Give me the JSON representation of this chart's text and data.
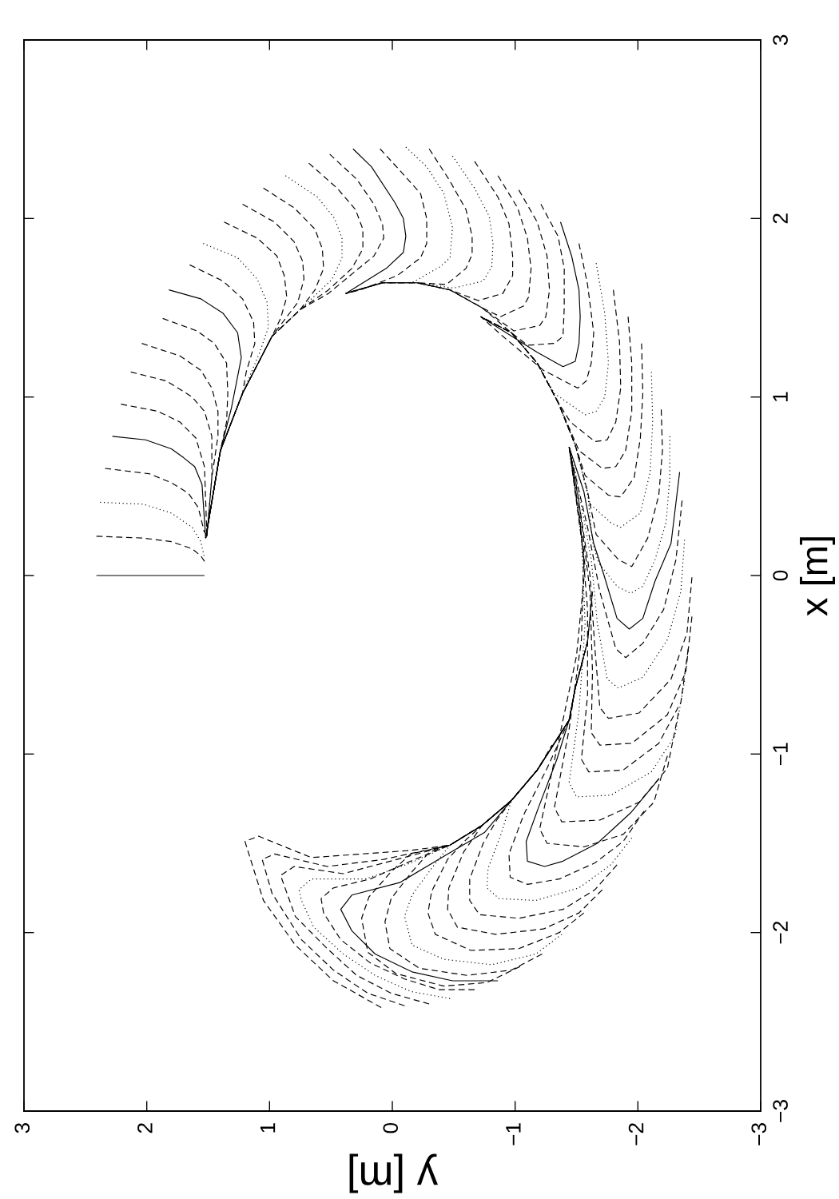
{
  "chart_data": {
    "type": "line",
    "xlabel": "y [m]",
    "ylabel": "x [m]",
    "xlim": [
      3,
      -3
    ],
    "ylim": [
      -3,
      3
    ],
    "xticks": [
      3,
      2,
      1,
      0,
      {
        "value": -1,
        "label": "−1"
      },
      {
        "value": -2,
        "label": "−2"
      },
      {
        "value": -3,
        "label": "−3"
      }
    ],
    "yticks": [
      {
        "value": -3,
        "label": "−3"
      },
      {
        "value": -2,
        "label": "−2"
      },
      {
        "value": -1,
        "label": "−1"
      },
      0,
      1,
      2,
      3
    ],
    "series": [
      {
        "x": [
          2.41,
          1.53
        ],
        "values": [
          0.0,
          0.0
        ],
        "color": "#000000",
        "line_style": "solid"
      },
      {
        "x": [
          2.41,
          2.03,
          1.8,
          1.63,
          1.56,
          1.52
        ],
        "values": [
          0.22,
          0.21,
          0.19,
          0.15,
          0.11,
          0.07
        ],
        "color": "#000000",
        "line_style": "dashed"
      },
      {
        "x": [
          2.38,
          2.03,
          1.8,
          1.63,
          1.56,
          1.53
        ],
        "values": [
          0.41,
          0.4,
          0.35,
          0.27,
          0.19,
          0.1
        ],
        "color": "#000000",
        "line_style": "dotted"
      },
      {
        "x": [
          2.34,
          1.98,
          1.8,
          1.66,
          1.58,
          1.53
        ],
        "values": [
          0.6,
          0.57,
          0.52,
          0.46,
          0.38,
          0.24
        ],
        "color": "#000000",
        "line_style": "dashed"
      },
      {
        "x": [
          2.28,
          2.01,
          1.8,
          1.7,
          1.61,
          1.55,
          1.52
        ],
        "values": [
          0.78,
          0.76,
          0.71,
          0.66,
          0.61,
          0.51,
          0.21
        ],
        "color": "#000000",
        "line_style": "solid"
      },
      {
        "x": [
          2.21,
          1.91,
          1.73,
          1.6,
          1.53,
          1.51
        ],
        "values": [
          0.96,
          0.92,
          0.86,
          0.77,
          0.61,
          0.22
        ],
        "color": "#000000",
        "line_style": "dashed"
      },
      {
        "x": [
          2.13,
          1.84,
          1.63,
          1.53,
          1.47,
          1.47,
          1.51
        ],
        "values": [
          1.14,
          1.09,
          1.0,
          0.92,
          0.78,
          0.55,
          0.22
        ],
        "color": "#000000",
        "line_style": "dashed"
      },
      {
        "x": [
          2.04,
          1.73,
          1.56,
          1.47,
          1.42,
          1.42,
          1.47,
          1.51
        ],
        "values": [
          1.3,
          1.23,
          1.15,
          1.05,
          0.92,
          0.78,
          0.55,
          0.22
        ],
        "color": "#000000",
        "line_style": "dashed"
      },
      {
        "x": [
          1.87,
          1.59,
          1.45,
          1.35,
          1.34,
          1.35,
          1.4,
          1.52
        ],
        "values": [
          1.44,
          1.37,
          1.3,
          1.19,
          1.02,
          0.86,
          0.7,
          0.21
        ],
        "color": "#000000",
        "line_style": "dashed"
      },
      {
        "x": [
          1.82,
          1.56,
          1.38,
          1.26,
          1.23,
          1.31,
          1.4,
          1.51
        ],
        "values": [
          1.6,
          1.55,
          1.47,
          1.36,
          1.22,
          0.94,
          0.7,
          0.25
        ],
        "color": "#000000",
        "line_style": "solid"
      },
      {
        "x": [
          1.65,
          1.38,
          1.22,
          1.13,
          1.12,
          1.19,
          1.22,
          1.4,
          1.52
        ],
        "values": [
          1.74,
          1.65,
          1.55,
          1.42,
          1.3,
          1.14,
          1.02,
          0.7,
          0.21
        ],
        "color": "#000000",
        "line_style": "dashed"
      },
      {
        "x": [
          1.54,
          1.26,
          1.1,
          1.02,
          1.01,
          1.08,
          1.22,
          1.4,
          1.52
        ],
        "values": [
          1.86,
          1.78,
          1.66,
          1.53,
          1.39,
          1.25,
          1.02,
          0.7,
          0.21
        ],
        "color": "#000000",
        "line_style": "dotted"
      },
      {
        "x": [
          1.37,
          1.1,
          0.94,
          0.88,
          0.86,
          0.91,
          0.98,
          1.22,
          1.4,
          1.52
        ],
        "values": [
          1.98,
          1.89,
          1.79,
          1.68,
          1.56,
          1.44,
          1.34,
          1.02,
          0.7,
          0.21
        ],
        "color": "#000000",
        "line_style": "dashed"
      },
      {
        "x": [
          1.22,
          0.96,
          0.8,
          0.73,
          0.72,
          0.77,
          0.98,
          1.22,
          1.4,
          1.52
        ],
        "values": [
          2.08,
          1.98,
          1.87,
          1.76,
          1.66,
          1.53,
          1.34,
          1.02,
          0.7,
          0.21
        ],
        "color": "#000000",
        "line_style": "dashed"
      },
      {
        "x": [
          1.05,
          0.8,
          0.63,
          0.57,
          0.56,
          0.63,
          0.75,
          0.98,
          1.22,
          1.4,
          1.52
        ],
        "values": [
          2.17,
          2.06,
          1.94,
          1.83,
          1.72,
          1.6,
          1.49,
          1.34,
          1.02,
          0.7,
          0.21
        ],
        "color": "#000000",
        "line_style": "dashed"
      },
      {
        "x": [
          0.87,
          0.61,
          0.47,
          0.41,
          0.41,
          0.49,
          0.75,
          0.98,
          1.22,
          1.4,
          1.52
        ],
        "values": [
          2.24,
          2.12,
          2.0,
          1.89,
          1.78,
          1.66,
          1.49,
          1.34,
          1.02,
          0.7,
          0.21
        ],
        "color": "#000000",
        "line_style": "dotted"
      },
      {
        "x": [
          0.68,
          0.45,
          0.3,
          0.24,
          0.24,
          0.33,
          0.52,
          0.75,
          0.98,
          1.22,
          1.4,
          1.52
        ],
        "values": [
          2.31,
          2.17,
          2.05,
          1.94,
          1.83,
          1.72,
          1.6,
          1.49,
          1.34,
          1.02,
          0.7,
          0.21
        ],
        "color": "#000000",
        "line_style": "dashed"
      },
      {
        "x": [
          0.51,
          0.29,
          0.15,
          0.08,
          0.07,
          0.15,
          0.31,
          0.52,
          0.75,
          0.98,
          1.22,
          1.4,
          1.52
        ],
        "values": [
          2.36,
          2.22,
          2.08,
          1.97,
          1.89,
          1.79,
          1.7,
          1.58,
          1.49,
          1.34,
          1.02,
          0.7,
          0.21
        ],
        "color": "#000000",
        "line_style": "dashed"
      },
      {
        "x": [
          0.32,
          0.17,
          -0.02,
          -0.09,
          -0.11,
          -0.09,
          0.05,
          0.38
        ],
        "values": [
          2.39,
          2.29,
          2.09,
          2.0,
          1.9,
          1.81,
          1.72,
          1.58
        ],
        "color": "#000000",
        "line_style": "solid"
      },
      {
        "x": [
          0.1,
          -0.06,
          -0.23,
          -0.28,
          -0.28,
          -0.23,
          -0.04,
          0.26,
          0.38
        ],
        "values": [
          2.39,
          2.27,
          2.14,
          2.0,
          1.86,
          1.78,
          1.68,
          1.6,
          1.58
        ],
        "color": "#000000",
        "line_style": "dashed"
      },
      {
        "x": [
          -0.11,
          -0.28,
          -0.42,
          -0.49,
          -0.47,
          -0.39,
          -0.16,
          0.08,
          0.38
        ],
        "values": [
          2.4,
          2.29,
          2.14,
          1.95,
          1.78,
          1.73,
          1.64,
          1.64,
          1.58
        ],
        "color": "#000000",
        "line_style": "dotted"
      },
      {
        "x": [
          -0.3,
          -0.46,
          -0.6,
          -0.65,
          -0.65,
          -0.6,
          -0.44,
          -0.2,
          0.08,
          0.38
        ],
        "values": [
          2.39,
          2.22,
          2.05,
          1.9,
          1.8,
          1.72,
          1.63,
          1.64,
          1.64,
          1.58
        ],
        "color": "#000000",
        "line_style": "dashed"
      },
      {
        "x": [
          -0.49,
          -0.67,
          -0.79,
          -0.82,
          -0.81,
          -0.74,
          -0.5,
          -0.2,
          0.08,
          0.38
        ],
        "values": [
          2.35,
          2.17,
          2.01,
          1.86,
          1.73,
          1.65,
          1.61,
          1.64,
          1.64,
          1.58
        ],
        "color": "#000000",
        "line_style": "dotted"
      },
      {
        "x": [
          -0.67,
          -0.86,
          -0.95,
          -0.98,
          -0.98,
          -0.9,
          -0.7,
          -0.47,
          -0.2,
          0.08,
          0.38
        ],
        "values": [
          2.32,
          2.12,
          1.97,
          1.79,
          1.68,
          1.58,
          1.54,
          1.6,
          1.64,
          1.64,
          1.58
        ],
        "color": "#000000",
        "line_style": "dashed"
      },
      {
        "x": [
          -0.86,
          -1.02,
          -1.1,
          -1.13,
          -1.11,
          -1.07,
          -0.88,
          -0.73,
          -0.47,
          -0.2,
          0.08,
          0.38
        ],
        "values": [
          2.24,
          2.06,
          1.89,
          1.72,
          1.56,
          1.51,
          1.45,
          1.5,
          1.6,
          1.64,
          1.64,
          1.58
        ],
        "color": "#000000",
        "line_style": "dashed"
      },
      {
        "x": [
          -1.03,
          -1.18,
          -1.26,
          -1.28,
          -1.25,
          -1.2,
          -0.99,
          -0.73,
          -0.47,
          -0.2,
          0.08,
          0.38
        ],
        "values": [
          2.16,
          1.98,
          1.79,
          1.6,
          1.45,
          1.4,
          1.37,
          1.5,
          1.6,
          1.64,
          1.64,
          1.58
        ],
        "color": "#000000",
        "line_style": "dashed"
      },
      {
        "x": [
          -1.21,
          -1.35,
          -1.4,
          -1.4,
          -1.39,
          -1.32,
          -1.1,
          -0.97,
          -0.73,
          -0.47,
          -0.2,
          0.08,
          0.38
        ],
        "values": [
          2.08,
          1.9,
          1.72,
          1.5,
          1.34,
          1.3,
          1.29,
          1.36,
          1.5,
          1.6,
          1.64,
          1.64,
          1.58
        ],
        "color": "#000000",
        "line_style": "dashed"
      },
      {
        "x": [
          -1.37,
          -1.46,
          -1.52,
          -1.53,
          -1.52,
          -1.49,
          -1.39,
          -1.18,
          -0.72
        ],
        "values": [
          1.98,
          1.79,
          1.6,
          1.45,
          1.3,
          1.2,
          1.17,
          1.25,
          1.45
        ],
        "color": "#000000",
        "line_style": "solid"
      },
      {
        "x": [
          -1.52,
          -1.59,
          -1.64,
          -1.62,
          -1.58,
          -1.51,
          -1.23,
          -0.9,
          -0.72
        ],
        "values": [
          1.86,
          1.63,
          1.36,
          1.19,
          1.09,
          1.05,
          1.15,
          1.34,
          1.45
        ],
        "color": "#000000",
        "line_style": "dashed"
      },
      {
        "x": [
          -1.66,
          -1.73,
          -1.76,
          -1.73,
          -1.66,
          -1.57,
          -1.32,
          -1.18,
          -0.97,
          -0.72
        ],
        "values": [
          1.75,
          1.47,
          1.19,
          1.0,
          0.92,
          0.9,
          1.02,
          1.19,
          1.36,
          1.45
        ],
        "color": "#000000",
        "line_style": "dotted"
      },
      {
        "x": [
          -1.8,
          -1.85,
          -1.86,
          -1.82,
          -1.75,
          -1.65,
          -1.45,
          -1.35,
          -1.18,
          -0.97,
          -0.72
        ],
        "values": [
          1.6,
          1.31,
          1.05,
          0.86,
          0.76,
          0.75,
          0.86,
          0.97,
          1.19,
          1.36,
          1.45
        ],
        "color": "#000000",
        "line_style": "dashed"
      },
      {
        "x": [
          -1.92,
          -1.95,
          -1.95,
          -1.9,
          -1.82,
          -1.71,
          -1.52,
          -1.35,
          -1.18,
          -0.97,
          -0.72
        ],
        "values": [
          1.45,
          1.19,
          0.92,
          0.7,
          0.61,
          0.6,
          0.7,
          0.97,
          1.19,
          1.36,
          1.45
        ],
        "color": "#000000",
        "line_style": "dashed"
      },
      {
        "x": [
          -2.03,
          -2.04,
          -2.02,
          -1.97,
          -1.86,
          -1.76,
          -1.57,
          -1.49,
          -1.35,
          -1.18,
          -0.97,
          -0.72
        ],
        "values": [
          1.3,
          1.02,
          0.77,
          0.55,
          0.44,
          0.45,
          0.56,
          0.73,
          0.97,
          1.19,
          1.36,
          1.45
        ],
        "color": "#000000",
        "line_style": "dashed"
      },
      {
        "x": [
          -2.11,
          -2.12,
          -2.1,
          -2.02,
          -1.86,
          -1.79,
          -1.61,
          -1.49,
          -1.35,
          -1.18,
          -0.97,
          -0.72
        ],
        "values": [
          1.14,
          0.86,
          0.58,
          0.35,
          0.27,
          0.29,
          0.4,
          0.73,
          0.97,
          1.19,
          1.36,
          1.45
        ],
        "color": "#000000",
        "line_style": "dotted"
      },
      {
        "x": [
          -2.19,
          -2.2,
          -2.17,
          -2.08,
          -1.95,
          -1.84,
          -1.66,
          -1.59,
          -1.49,
          -1.35,
          -1.18,
          -0.97,
          -0.72
        ],
        "values": [
          0.93,
          0.7,
          0.45,
          0.21,
          0.05,
          0.09,
          0.23,
          0.47,
          0.73,
          0.97,
          1.19,
          1.36,
          1.45
        ],
        "color": "#000000",
        "line_style": "dashed"
      },
      {
        "x": [
          -2.26,
          -2.26,
          -2.23,
          -2.14,
          -2.04,
          -1.94,
          -1.83,
          -1.68,
          -1.63,
          -1.59,
          -1.49,
          -1.35,
          -1.18,
          -0.97,
          -0.72
        ],
        "values": [
          0.78,
          0.55,
          0.3,
          0.09,
          -0.06,
          -0.1,
          -0.06,
          0.07,
          0.19,
          0.47,
          0.73,
          0.97,
          1.19,
          1.36,
          1.45
        ],
        "color": "#000000",
        "line_style": "dotted"
      },
      {
        "x": [
          -2.34,
          -2.27,
          -2.14,
          -2.04,
          -1.93,
          -1.83,
          -1.72,
          -1.64,
          -1.56,
          -1.44
        ],
        "values": [
          0.58,
          0.18,
          -0.03,
          -0.24,
          -0.3,
          -0.24,
          0.01,
          0.18,
          0.47,
          0.72
        ],
        "color": "#000000",
        "line_style": "solid"
      },
      {
        "x": [
          -2.36,
          -2.31,
          -2.21,
          -2.04,
          -1.9,
          -1.82,
          -1.69,
          -1.59,
          -1.46,
          -1.44
        ],
        "values": [
          0.42,
          0.09,
          -0.19,
          -0.38,
          -0.46,
          -0.41,
          -0.09,
          0.27,
          0.65,
          0.72
        ],
        "color": "#000000",
        "line_style": "dashed"
      },
      {
        "x": [
          -2.38,
          -2.35,
          -2.24,
          -2.04,
          -1.84,
          -1.75,
          -1.67,
          -1.62,
          -1.49,
          -1.44
        ],
        "values": [
          0.2,
          -0.09,
          -0.36,
          -0.57,
          -0.63,
          -0.58,
          -0.27,
          0.09,
          0.58,
          0.72
        ],
        "color": "#000000",
        "line_style": "dotted"
      },
      {
        "x": [
          -2.44,
          -2.4,
          -2.27,
          -2.01,
          -1.76,
          -1.69,
          -1.65,
          -1.61,
          -1.5,
          -1.44
        ],
        "values": [
          -0.01,
          -0.32,
          -0.58,
          -0.77,
          -0.8,
          -0.74,
          -0.41,
          0.0,
          0.5,
          0.72
        ],
        "color": "#000000",
        "line_style": "dashed"
      },
      {
        "x": [
          -2.44,
          -2.39,
          -2.24,
          -1.95,
          -1.69,
          -1.62,
          -1.63,
          -1.61,
          -1.52,
          -1.44
        ],
        "values": [
          -0.23,
          -0.54,
          -0.78,
          -0.94,
          -0.95,
          -0.88,
          -0.54,
          -0.09,
          0.41,
          0.72
        ],
        "color": "#000000",
        "line_style": "dashed"
      },
      {
        "x": [
          -2.41,
          -2.35,
          -2.17,
          -1.88,
          -1.6,
          -1.54,
          -1.59,
          -1.59,
          -1.53,
          -1.44
        ],
        "values": [
          -0.41,
          -0.71,
          -0.94,
          -1.09,
          -1.1,
          -1.03,
          -0.67,
          -0.19,
          0.31,
          0.72
        ],
        "color": "#000000",
        "line_style": "dashed"
      },
      {
        "x": [
          -2.38,
          -2.3,
          -2.11,
          -1.78,
          -1.5,
          -1.44,
          -1.52,
          -1.57,
          -1.54,
          -1.44
        ],
        "values": [
          -0.59,
          -0.9,
          -1.1,
          -1.23,
          -1.24,
          -1.16,
          -0.76,
          -0.27,
          0.22,
          0.72
        ],
        "color": "#000000",
        "line_style": "dotted"
      },
      {
        "x": [
          -2.33,
          -2.24,
          -2.01,
          -1.69,
          -1.38,
          -1.32,
          -1.44,
          -1.54,
          -1.56,
          -1.44
        ],
        "values": [
          -0.77,
          -1.08,
          -1.27,
          -1.37,
          -1.38,
          -1.3,
          -0.86,
          -0.36,
          0.13,
          0.72
        ],
        "color": "#000000",
        "line_style": "dashed"
      },
      {
        "x": [
          -2.24,
          -2.13,
          -1.88,
          -1.56,
          -1.26,
          -1.2,
          -1.35,
          -1.5,
          -1.57,
          -1.44
        ],
        "values": [
          -1.01,
          -1.27,
          -1.45,
          -1.52,
          -1.5,
          -1.42,
          -0.94,
          -0.45,
          0.05,
          0.72
        ],
        "color": "#000000",
        "line_style": "dashed"
      },
      {
        "x": [
          -2.17,
          -1.94,
          -1.67,
          -1.39,
          -1.24,
          -1.1,
          -1.09,
          -1.19,
          -1.34,
          -1.44
        ],
        "values": [
          -1.14,
          -1.33,
          -1.5,
          -1.6,
          -1.63,
          -1.6,
          -1.49,
          -1.3,
          -1.03,
          -0.81
        ],
        "color": "#000000",
        "line_style": "solid"
      },
      {
        "x": [
          -2.05,
          -1.88,
          -1.65,
          -1.36,
          -1.1,
          -0.96,
          -0.95,
          -1.07,
          -1.26,
          -1.44,
          -1.49
        ],
        "values": [
          -1.32,
          -1.49,
          -1.61,
          -1.7,
          -1.73,
          -1.69,
          -1.56,
          -1.34,
          -1.08,
          -0.81,
          -0.63
        ],
        "color": "#000000",
        "line_style": "dashed"
      },
      {
        "x": [
          -1.95,
          -1.78,
          -1.52,
          -1.17,
          -0.87,
          -0.77,
          -0.78,
          -0.89,
          -0.97,
          -1.18,
          -1.44,
          -1.49
        ],
        "values": [
          -1.47,
          -1.62,
          -1.75,
          -1.82,
          -1.81,
          -1.75,
          -1.64,
          -1.44,
          -1.26,
          -1.09,
          -0.81,
          -0.63
        ],
        "color": "#000000",
        "line_style": "dotted"
      },
      {
        "x": [
          -1.83,
          -1.65,
          -1.39,
          -1.03,
          -0.71,
          -0.63,
          -0.63,
          -0.74,
          -0.85,
          -0.97,
          -1.18,
          -1.44,
          -1.49,
          -1.56
        ],
        "values": [
          -1.62,
          -1.76,
          -1.87,
          -1.92,
          -1.9,
          -1.82,
          -1.7,
          -1.5,
          -1.37,
          -1.26,
          -1.09,
          -0.81,
          -0.63,
          -0.46
        ],
        "color": "#000000",
        "line_style": "dashed"
      },
      {
        "x": [
          -1.71,
          -1.52,
          -1.23,
          -0.84,
          -0.53,
          -0.45,
          -0.46,
          -0.58,
          -0.73,
          -0.97,
          -1.18,
          -1.44,
          -1.49,
          -1.59
        ],
        "values": [
          -1.76,
          -1.89,
          -1.98,
          -2.01,
          -1.97,
          -1.87,
          -1.75,
          -1.55,
          -1.4,
          -1.26,
          -1.09,
          -0.81,
          -0.63,
          -0.37
        ],
        "color": "#000000",
        "line_style": "dashed"
      },
      {
        "x": [
          -1.56,
          -1.36,
          -1.03,
          -0.64,
          -0.35,
          -0.29,
          -0.32,
          -0.45,
          -0.6,
          -0.73,
          -0.97,
          -1.18,
          -1.44,
          -1.49,
          -1.59
        ],
        "values": [
          -1.89,
          -2.0,
          -2.09,
          -2.1,
          -2.01,
          -1.89,
          -1.77,
          -1.59,
          -1.48,
          -1.4,
          -1.26,
          -1.09,
          -0.81,
          -0.63,
          -0.37
        ],
        "color": "#000000",
        "line_style": "dashed"
      },
      {
        "x": [
          -1.38,
          -1.17,
          -0.81,
          -0.42,
          -0.16,
          -0.1,
          -0.16,
          -0.32,
          -0.47,
          -0.73,
          -0.97,
          -1.18,
          -1.44,
          -1.49,
          -1.59,
          -1.61
        ],
        "values": [
          -2.01,
          -2.12,
          -2.18,
          -2.15,
          -2.07,
          -1.91,
          -1.79,
          -1.64,
          -1.51,
          -1.4,
          -1.26,
          -1.09,
          -0.81,
          -0.63,
          -0.37,
          -0.24
        ],
        "color": "#000000",
        "line_style": "dotted"
      },
      {
        "x": [
          -1.22,
          -0.97,
          -0.61,
          -0.22,
          0.02,
          0.06,
          0.01,
          -0.16,
          -0.3,
          -0.47,
          -0.73,
          -0.97,
          -1.18,
          -1.44,
          -1.49,
          -1.59,
          -1.63
        ],
        "values": [
          -2.12,
          -2.21,
          -2.24,
          -2.2,
          -2.09,
          -1.94,
          -1.81,
          -1.66,
          -1.55,
          -1.51,
          -1.4,
          -1.26,
          -1.09,
          -0.81,
          -0.63,
          -0.37,
          -0.09
        ],
        "color": "#000000",
        "line_style": "dashed"
      },
      {
        "x": [
          -1.04,
          -0.77,
          -0.42,
          -0.03,
          0.2,
          0.25,
          0.19,
          0.01,
          -0.15,
          -0.47,
          -0.73,
          -0.97,
          -1.18,
          -1.44,
          -1.49,
          -1.59,
          -1.63
        ],
        "values": [
          -2.19,
          -2.28,
          -2.3,
          -2.23,
          -2.11,
          -1.92,
          -1.8,
          -1.66,
          -1.56,
          -1.51,
          -1.4,
          -1.26,
          -1.09,
          -0.81,
          -0.63,
          -0.37,
          -0.09
        ],
        "color": "#000000",
        "line_style": "dashed"
      },
      {
        "x": [
          -0.86,
          -0.49,
          -0.16,
          0.14,
          0.33,
          0.42,
          0.33,
          -0.06,
          -0.45,
          -0.75,
          -0.97
        ],
        "values": [
          -2.27,
          -2.27,
          -2.22,
          -2.12,
          -1.99,
          -1.87,
          -1.79,
          -1.72,
          -1.56,
          -1.44,
          -1.26
        ],
        "color": "#000000",
        "line_style": "solid"
      },
      {
        "x": [
          -0.67,
          -0.38,
          -0.1,
          0.18,
          0.42,
          0.56,
          0.58,
          0.48,
          0.18,
          -0.15,
          -0.47,
          -0.73,
          -0.97,
          -1.18
        ],
        "values": [
          -2.32,
          -2.32,
          -2.26,
          -2.17,
          -2.04,
          -1.89,
          -1.81,
          -1.75,
          -1.7,
          -1.6,
          -1.51,
          -1.4,
          -1.26,
          -1.09
        ],
        "color": "#000000",
        "line_style": "dashed"
      },
      {
        "x": [
          -0.47,
          -0.15,
          0.14,
          0.4,
          0.64,
          0.74,
          0.76,
          0.66,
          0.22,
          -0.15,
          -0.47,
          -0.73,
          -0.97,
          -1.18
        ],
        "values": [
          -2.37,
          -2.33,
          -2.24,
          -2.12,
          -1.97,
          -1.82,
          -1.76,
          -1.7,
          -1.7,
          -1.61,
          -1.51,
          -1.4,
          -1.26,
          -1.09
        ],
        "color": "#000000",
        "line_style": "dotted"
      },
      {
        "x": [
          -0.3,
          0.01,
          0.29,
          0.53,
          0.79,
          0.91,
          0.8,
          0.4,
          -0.04,
          -0.47,
          -0.73,
          -0.97,
          -1.18,
          -1.3
        ],
        "values": [
          -2.4,
          -2.34,
          -2.24,
          -2.09,
          -1.91,
          -1.68,
          -1.63,
          -1.67,
          -1.59,
          -1.51,
          -1.4,
          -1.26,
          -1.09,
          -0.95
        ],
        "color": "#000000",
        "line_style": "dashed"
      },
      {
        "x": [
          -0.1,
          0.2,
          0.48,
          0.74,
          0.98,
          1.06,
          0.96,
          0.53,
          0.07,
          -0.47,
          -0.73,
          -0.97,
          -1.18,
          -1.44
        ],
        "values": [
          -2.41,
          -2.34,
          -2.21,
          -2.04,
          -1.78,
          -1.59,
          -1.56,
          -1.63,
          -1.59,
          -1.51,
          -1.4,
          -1.26,
          -1.09,
          -0.81
        ],
        "color": "#000000",
        "line_style": "dashed"
      },
      {
        "x": [
          0.09,
          0.48,
          0.79,
          1.05,
          1.2,
          1.09,
          0.66,
          -0.15,
          -0.47,
          -0.73,
          -0.97,
          -1.18,
          -1.44
        ],
        "values": [
          -2.42,
          -2.27,
          -2.07,
          -1.82,
          -1.49,
          -1.46,
          -1.58,
          -1.54,
          -1.51,
          -1.4,
          -1.26,
          -1.09,
          -0.81
        ],
        "color": "#000000",
        "line_style": "dashed"
      }
    ]
  }
}
